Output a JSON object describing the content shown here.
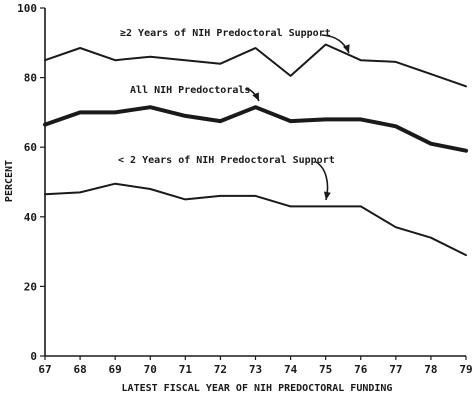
{
  "chart_data": {
    "type": "line",
    "title": "",
    "xlabel": "LATEST FISCAL YEAR OF NIH PREDOCTORAL FUNDING",
    "ylabel": "PERCENT",
    "xlim": [
      67,
      79
    ],
    "ylim": [
      0,
      100
    ],
    "grid": false,
    "x_ticks": [
      "67",
      "68",
      "69",
      "70",
      "71",
      "72",
      "73",
      "74",
      "75",
      "76",
      "77",
      "78",
      "79"
    ],
    "y_ticks": [
      "0",
      "20",
      "40",
      "60",
      "80",
      "100"
    ],
    "x": [
      67,
      68,
      69,
      70,
      71,
      72,
      73,
      74,
      75,
      76,
      77,
      78,
      79
    ],
    "series": [
      {
        "name": "≥2 Years of NIH Predoctoral Support",
        "values": [
          85,
          88.5,
          85,
          86,
          85,
          84,
          88.5,
          80.5,
          89.5,
          85,
          84.5,
          81,
          77.5
        ],
        "color": "#1a1a1a"
      },
      {
        "name": "All NIH Predoctorals",
        "values": [
          66.5,
          70,
          70,
          71.5,
          69,
          67.5,
          71.5,
          67.5,
          68,
          68,
          66,
          61,
          59
        ],
        "color": "#1a1a1a"
      },
      {
        "name": "< 2 Years of NIH Predoctoral Support",
        "values": [
          46.5,
          47,
          49.5,
          48,
          45,
          46,
          46,
          43,
          43,
          43,
          37,
          34,
          29
        ],
        "color": "#1a1a1a"
      }
    ]
  }
}
